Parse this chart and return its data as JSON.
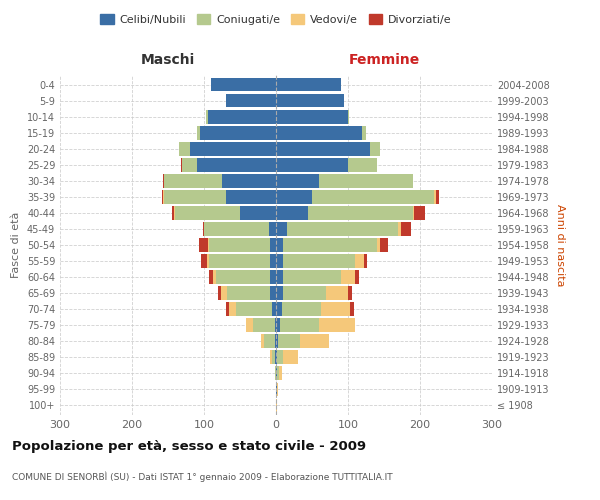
{
  "age_groups": [
    "100+",
    "95-99",
    "90-94",
    "85-89",
    "80-84",
    "75-79",
    "70-74",
    "65-69",
    "60-64",
    "55-59",
    "50-54",
    "45-49",
    "40-44",
    "35-39",
    "30-34",
    "25-29",
    "20-24",
    "15-19",
    "10-14",
    "5-9",
    "0-4"
  ],
  "birth_years": [
    "≤ 1908",
    "1909-1913",
    "1914-1918",
    "1919-1923",
    "1924-1928",
    "1929-1933",
    "1934-1938",
    "1939-1943",
    "1944-1948",
    "1949-1953",
    "1954-1958",
    "1959-1963",
    "1964-1968",
    "1969-1973",
    "1974-1978",
    "1979-1983",
    "1984-1988",
    "1989-1993",
    "1994-1998",
    "1999-2003",
    "2004-2008"
  ],
  "male_celibi": [
    0,
    0,
    0,
    1,
    1,
    2,
    5,
    8,
    8,
    8,
    8,
    10,
    50,
    70,
    75,
    110,
    120,
    105,
    95,
    70,
    90
  ],
  "male_coniugati": [
    0,
    0,
    2,
    5,
    15,
    30,
    50,
    60,
    75,
    85,
    85,
    90,
    90,
    85,
    80,
    20,
    15,
    5,
    2,
    0,
    0
  ],
  "male_vedovi": [
    0,
    0,
    0,
    2,
    5,
    10,
    10,
    8,
    5,
    3,
    2,
    0,
    2,
    2,
    0,
    0,
    0,
    0,
    0,
    0,
    0
  ],
  "male_divorziati": [
    0,
    0,
    0,
    0,
    0,
    0,
    5,
    5,
    5,
    8,
    12,
    2,
    2,
    2,
    2,
    2,
    0,
    0,
    0,
    0,
    0
  ],
  "female_celibi": [
    0,
    1,
    2,
    2,
    3,
    5,
    8,
    10,
    10,
    10,
    10,
    15,
    45,
    50,
    60,
    100,
    130,
    120,
    100,
    95,
    90
  ],
  "female_coniugati": [
    0,
    0,
    2,
    8,
    30,
    55,
    55,
    60,
    80,
    100,
    130,
    155,
    145,
    170,
    130,
    40,
    15,
    5,
    2,
    0,
    0
  ],
  "female_vedovi": [
    1,
    2,
    5,
    20,
    40,
    50,
    40,
    30,
    20,
    12,
    5,
    3,
    2,
    2,
    0,
    0,
    0,
    0,
    0,
    0,
    0
  ],
  "female_divorziati": [
    0,
    0,
    0,
    0,
    0,
    0,
    5,
    5,
    5,
    5,
    10,
    15,
    15,
    5,
    0,
    0,
    0,
    0,
    0,
    0,
    0
  ],
  "colors": {
    "celibi": "#3a6ea5",
    "coniugati": "#b5c98e",
    "vedovi": "#f5c87a",
    "divorziati": "#c0392b"
  },
  "title": "Popolazione per età, sesso e stato civile - 2009",
  "subtitle": "COMUNE DI SENORBÌ (SU) - Dati ISTAT 1° gennaio 2009 - Elaborazione TUTTITALIA.IT",
  "xlabel_left": "Maschi",
  "xlabel_right": "Femmine",
  "ylabel_left": "Fasce di età",
  "ylabel_right": "Anni di nascita",
  "xlim": 300,
  "background_color": "#ffffff",
  "grid_color": "#cccccc"
}
